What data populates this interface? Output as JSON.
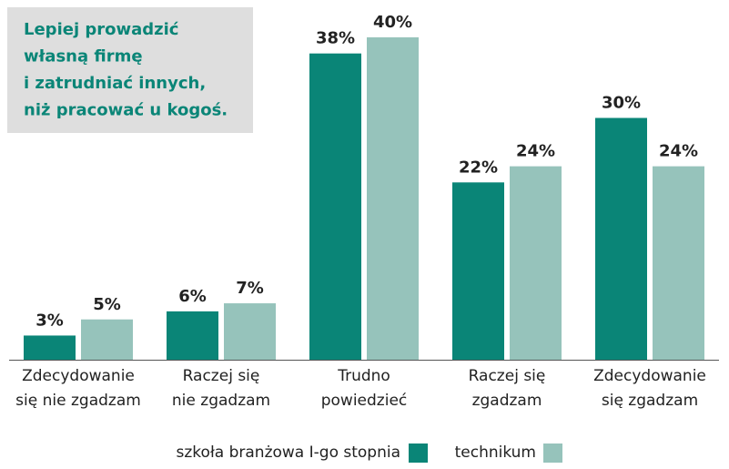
{
  "chart_data": {
    "type": "bar",
    "title": "Lepiej prowadzić\nwłasną firmę\ni zatrudniać innych,\nniż pracować u kogoś.",
    "categories": [
      "Zdecydowanie\nsię nie zgadzam",
      "Raczej się\nnie zgadzam",
      "Trudno\npowiedzieć",
      "Raczej się\nzgadzam",
      "Zdecydowanie\nsię zgadzam"
    ],
    "series": [
      {
        "name": "szkoła branżowa I-go stopnia",
        "color": "#0a8577",
        "values": [
          3,
          6,
          38,
          22,
          30
        ],
        "value_labels": [
          "3%",
          "6%",
          "38%",
          "22%",
          "30%"
        ]
      },
      {
        "name": "technikum",
        "color": "#96c3bb",
        "values": [
          5,
          7,
          40,
          24,
          24
        ],
        "value_labels": [
          "5%",
          "7%",
          "40%",
          "24%",
          "24%"
        ]
      }
    ]
  }
}
